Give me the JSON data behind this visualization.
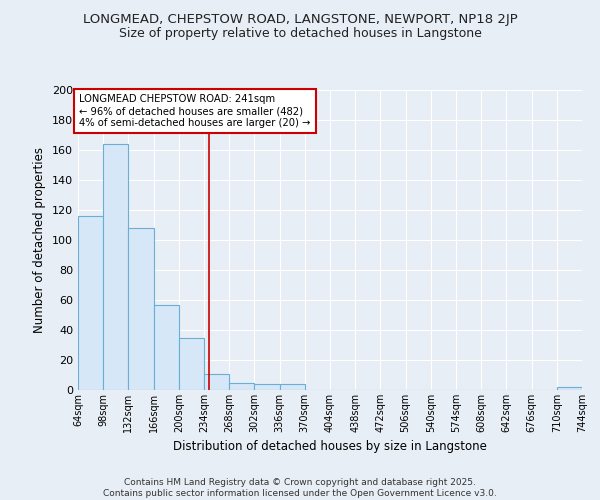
{
  "title1": "LONGMEAD, CHEPSTOW ROAD, LANGSTONE, NEWPORT, NP18 2JP",
  "title2": "Size of property relative to detached houses in Langstone",
  "xlabel": "Distribution of detached houses by size in Langstone",
  "ylabel": "Number of detached properties",
  "annotation_line1": "LONGMEAD CHEPSTOW ROAD: 241sqm",
  "annotation_line2": "← 96% of detached houses are smaller (482)",
  "annotation_line3": "4% of semi-detached houses are larger (20) →",
  "bin_edges": [
    64,
    98,
    132,
    166,
    200,
    234,
    268,
    302,
    336,
    370,
    404,
    438,
    472,
    506,
    540,
    574,
    608,
    642,
    676,
    710,
    744
  ],
  "bar_heights": [
    116,
    164,
    108,
    57,
    35,
    11,
    5,
    4,
    4,
    0,
    0,
    0,
    0,
    0,
    0,
    0,
    0,
    0,
    0,
    2
  ],
  "bar_color": "#d6e8f7",
  "bar_edge_color": "#6aaed6",
  "vline_color": "#cc0000",
  "vline_x": 241,
  "background_color": "#e8eef5",
  "plot_bg_color": "#e8eef5",
  "ylim": [
    0,
    200
  ],
  "yticks": [
    0,
    20,
    40,
    60,
    80,
    100,
    120,
    140,
    160,
    180,
    200
  ],
  "footer_line1": "Contains HM Land Registry data © Crown copyright and database right 2025.",
  "footer_line2": "Contains public sector information licensed under the Open Government Licence v3.0.",
  "annotation_box_color": "#ffffff",
  "annotation_box_edge": "#cc0000",
  "grid_color": "#ffffff"
}
